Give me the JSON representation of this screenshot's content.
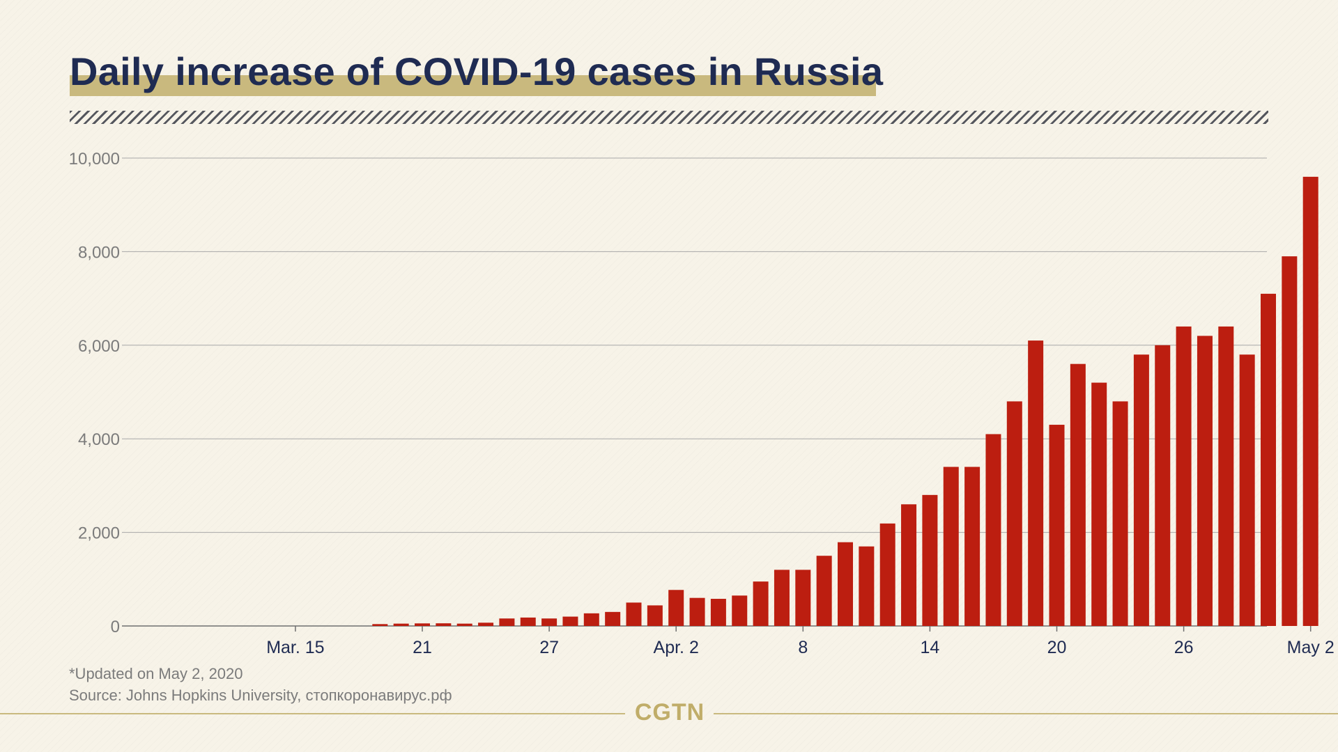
{
  "title": "Daily increase of COVID-19 cases in Russia",
  "footnote": {
    "updated": "*Updated on May 2, 2020",
    "source": "Source: Johns Hopkins University, стопкоронавирус.рф"
  },
  "logo": "CGTN",
  "colors": {
    "bar": "#bc1e10",
    "title": "#1f2b52",
    "accent": "#c9b97e",
    "background": "#f7f3e8"
  },
  "chart_data": {
    "type": "bar",
    "title": "Daily increase of COVID-19 cases in Russia",
    "xlabel": "",
    "ylabel": "",
    "ylim": [
      0,
      10000
    ],
    "yticks": [
      0,
      2000,
      4000,
      6000,
      8000,
      10000
    ],
    "ytick_labels": [
      "0",
      "2,000",
      "4,000",
      "6,000",
      "8,000",
      "10,000"
    ],
    "grid": true,
    "xticks": [
      {
        "date": "2020-03-15",
        "label": "Mar. 15"
      },
      {
        "date": "2020-03-21",
        "label": "21"
      },
      {
        "date": "2020-03-27",
        "label": "27"
      },
      {
        "date": "2020-04-02",
        "label": "Apr. 2"
      },
      {
        "date": "2020-04-08",
        "label": "8"
      },
      {
        "date": "2020-04-14",
        "label": "14"
      },
      {
        "date": "2020-04-20",
        "label": "20"
      },
      {
        "date": "2020-04-26",
        "label": "26"
      },
      {
        "date": "2020-05-02",
        "label": "May 2"
      }
    ],
    "categories": [
      "2020-03-11",
      "2020-03-12",
      "2020-03-13",
      "2020-03-14",
      "2020-03-15",
      "2020-03-16",
      "2020-03-17",
      "2020-03-18",
      "2020-03-19",
      "2020-03-20",
      "2020-03-21",
      "2020-03-22",
      "2020-03-23",
      "2020-03-24",
      "2020-03-25",
      "2020-03-26",
      "2020-03-27",
      "2020-03-28",
      "2020-03-29",
      "2020-03-30",
      "2020-03-31",
      "2020-04-01",
      "2020-04-02",
      "2020-04-03",
      "2020-04-04",
      "2020-04-05",
      "2020-04-06",
      "2020-04-07",
      "2020-04-08",
      "2020-04-09",
      "2020-04-10",
      "2020-04-11",
      "2020-04-12",
      "2020-04-13",
      "2020-04-14",
      "2020-04-15",
      "2020-04-16",
      "2020-04-17",
      "2020-04-18",
      "2020-04-19",
      "2020-04-20",
      "2020-04-21",
      "2020-04-22",
      "2020-04-23",
      "2020-04-24",
      "2020-04-25",
      "2020-04-26",
      "2020-04-27",
      "2020-04-28",
      "2020-04-29",
      "2020-04-30",
      "2020-05-01",
      "2020-05-02"
    ],
    "values": [
      0,
      0,
      0,
      0,
      0,
      0,
      0,
      0,
      40,
      50,
      55,
      57,
      50,
      70,
      160,
      180,
      160,
      200,
      270,
      300,
      500,
      440,
      770,
      600,
      580,
      650,
      950,
      1200,
      1200,
      1500,
      1790,
      1700,
      2190,
      2600,
      2800,
      3400,
      3400,
      4100,
      4800,
      6100,
      4300,
      5600,
      5200,
      4800,
      5800,
      6000,
      6400,
      6200,
      6400,
      5800,
      7100,
      7900,
      9600
    ]
  }
}
